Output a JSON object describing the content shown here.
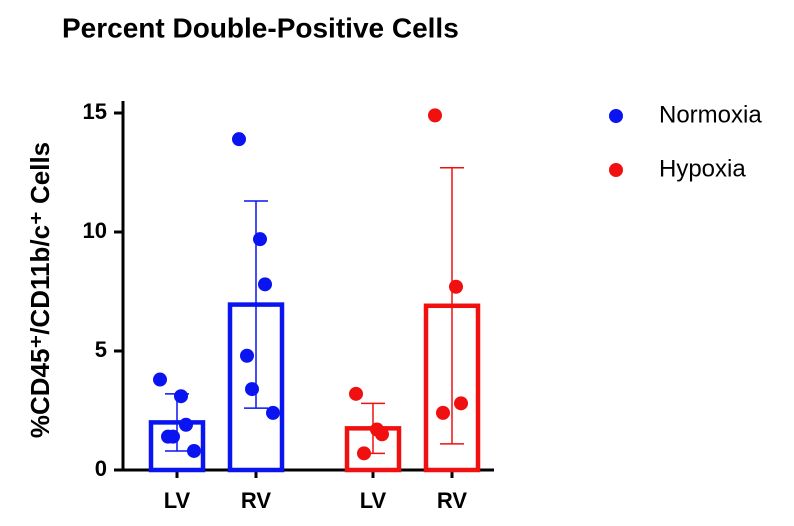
{
  "chart_data": {
    "type": "bar",
    "title": "Percent Double-Positive Cells",
    "y_label": "%CD45⁺/CD11b/c⁺ Cells",
    "categories": [
      "LV",
      "RV"
    ],
    "series": [
      {
        "name": "Normoxia",
        "color": "#0a14f0",
        "values": [
          2.0,
          6.95
        ],
        "errors": [
          1.2,
          4.35
        ],
        "points": [
          [
            3.8,
            3.1,
            1.9,
            1.4,
            1.4,
            0.8
          ],
          [
            13.9,
            9.7,
            7.8,
            4.8,
            3.4,
            2.4
          ]
        ]
      },
      {
        "name": "Hypoxia",
        "color": "#f01010",
        "values": [
          1.75,
          6.9
        ],
        "errors": [
          1.05,
          5.8
        ],
        "points": [
          [
            3.2,
            1.7,
            1.5,
            0.7
          ],
          [
            14.9,
            7.7,
            2.8,
            2.4
          ]
        ]
      }
    ],
    "ylim": [
      0,
      15
    ],
    "yticks": [
      0,
      5,
      10,
      15
    ],
    "legend": "top-right"
  }
}
